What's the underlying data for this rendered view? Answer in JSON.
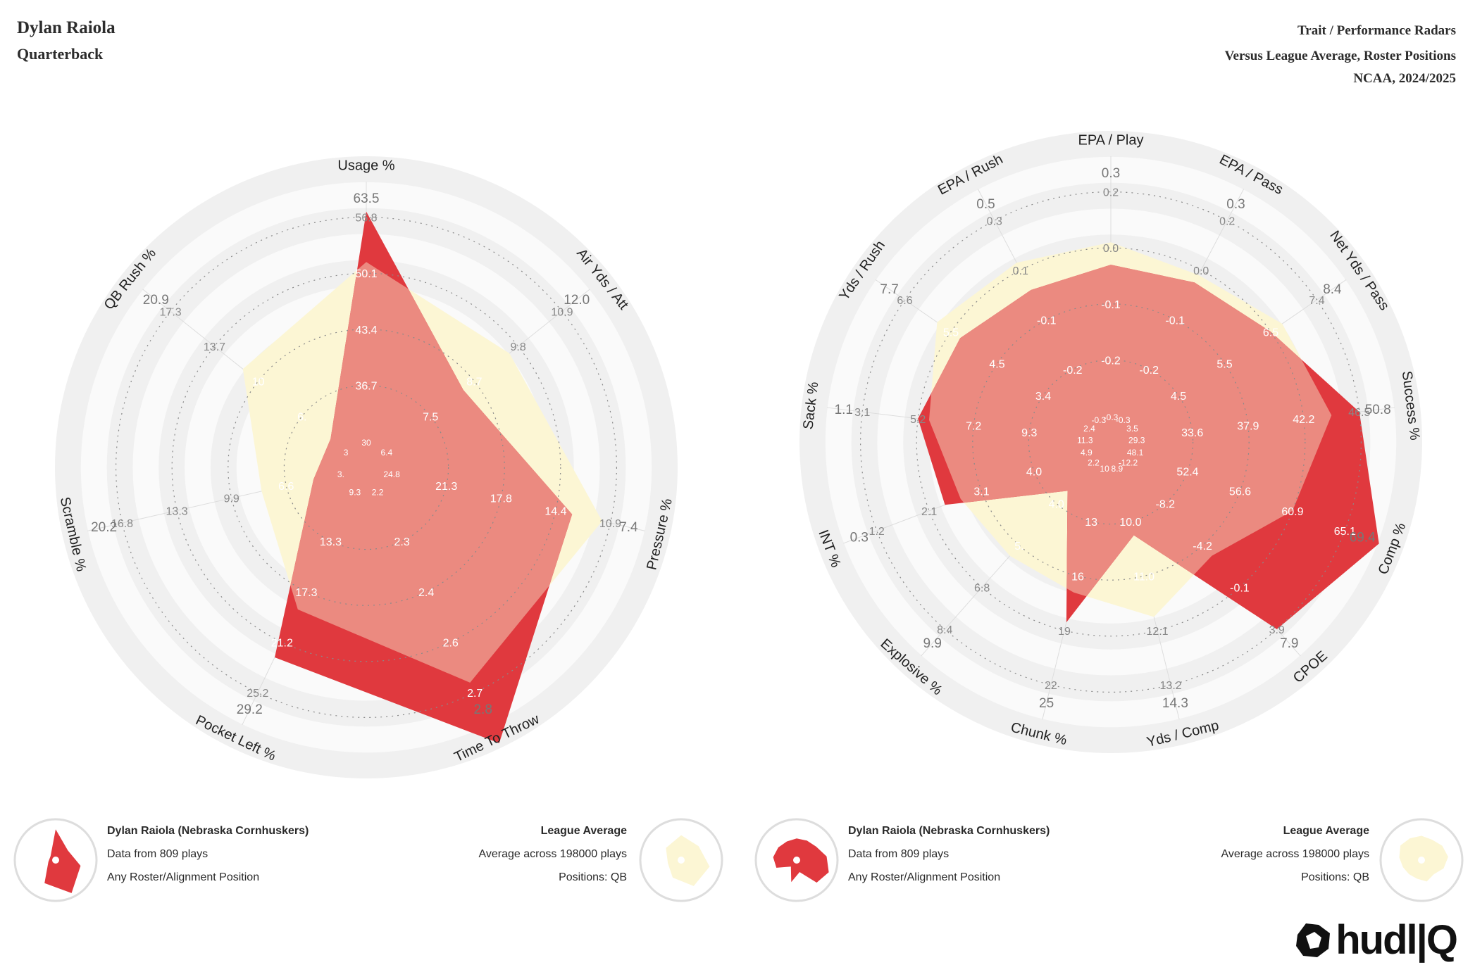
{
  "header": {
    "player_name": "Dylan Raiola",
    "position": "Quarterback",
    "title": "Trait / Performance Radars",
    "subtitle": "Versus League Average, Roster Positions",
    "season": "NCAA, 2024/2025"
  },
  "colors": {
    "player_fill": "#e0393e",
    "league_fill": "#fcf6d4",
    "overlap_fill": "#eb8a80",
    "ring_dark": "#f0f0f0",
    "ring_light": "#fafafa"
  },
  "chart_data": [
    {
      "type": "radar",
      "title": "Trait Radar",
      "axes": [
        {
          "label": "Usage %",
          "ticks": [
            "30",
            "36.7",
            "43.4",
            "50.1",
            "56.8",
            "63.5"
          ],
          "player": 0.82,
          "league": 0.64
        },
        {
          "label": "Air Yds / Att",
          "ticks": [
            "6.4",
            "7.5",
            "8.7",
            "9.8",
            "10.9",
            "12.0"
          ],
          "player": 0.35,
          "league": 0.56
        },
        {
          "label": "Pressure %",
          "ticks": [
            "24.8",
            "21.3",
            "17.8",
            "14.4",
            "10.9",
            "7.4"
          ],
          "player": 0.66,
          "league": 0.77
        },
        {
          "label": "Time To Throw",
          "ticks": [
            "2.2",
            "2.3",
            "2.4",
            "2.6",
            "2.7",
            "2.8"
          ],
          "player": 1.0,
          "league": 0.76
        },
        {
          "label": "Pocket Left %",
          "ticks": [
            "9.3",
            "13.3",
            "17.3",
            "21.2",
            "25.2",
            "29.2"
          ],
          "player": 0.66,
          "league": 0.47
        },
        {
          "label": "Scramble %",
          "ticks": [
            "3.",
            "6.6",
            "9.9",
            "13.3",
            "16.8",
            "20.2"
          ],
          "player": 0.1,
          "league": 0.29
        },
        {
          "label": "QB Rush %",
          "ticks": [
            "3",
            "6.",
            "10",
            "13.7",
            "17.3",
            "20.9"
          ],
          "player": 0.07,
          "league": 0.47
        }
      ]
    },
    {
      "type": "radar",
      "title": "Performance Radar",
      "axes": [
        {
          "label": "EPA / Play",
          "ticks": [
            "-0.3",
            "-0.2",
            "-0.1",
            "0.0",
            "0.2",
            "0.3"
          ],
          "player": 0.54,
          "league": 0.62
        },
        {
          "label": "EPA / Pass",
          "ticks": [
            "-0.3",
            "-0.2",
            "-0.1",
            "0.0",
            "0.2",
            "0.3"
          ],
          "player": 0.55,
          "league": 0.58
        },
        {
          "label": "Net Yds / Pass",
          "ticks": [
            "3.5",
            "4.5",
            "5.5",
            "6.5",
            "7.4",
            "8.4"
          ],
          "player": 0.6,
          "league": 0.65
        },
        {
          "label": "Success %",
          "ticks": [
            "29.3",
            "33.6",
            "37.9",
            "42.2",
            "46.5",
            "50.8"
          ],
          "player": 0.8,
          "league": 0.7
        },
        {
          "label": "Comp %",
          "ticks": [
            "48.1",
            "52.4",
            "56.6",
            "60.9",
            "65.1",
            "69.4"
          ],
          "player": 0.93,
          "league": 0.6
        },
        {
          "label": "CPOE",
          "ticks": [
            "-12.2",
            "-8.2",
            "-4.2",
            "-0.1",
            "3.9",
            "7.9"
          ],
          "player": 0.8,
          "league": 0.45
        },
        {
          "label": "Yds / Comp",
          "ticks": [
            "8.9",
            "10.0",
            "11.0",
            "12.1",
            "13.2",
            "14.3"
          ],
          "player": 0.25,
          "league": 0.55
        },
        {
          "label": "Chunk %",
          "ticks": [
            "10",
            "13",
            "16",
            "19",
            "22",
            "25"
          ],
          "player": 0.57,
          "league": 0.46
        },
        {
          "label": "Explosive %",
          "ticks": [
            "2.2",
            "4.0",
            "5.",
            "6.8",
            "8.4",
            "9.9"
          ],
          "player": 0.14,
          "league": 0.45
        },
        {
          "label": "INT %",
          "ticks": [
            "4.9",
            "4.0",
            "3.1",
            "2.1",
            "1.2",
            "0.3"
          ],
          "player": 0.54,
          "league": 0.48
        },
        {
          "label": "Sack %",
          "ticks": [
            "11.3",
            "9.3",
            "7.2",
            "5.2",
            "3.1",
            "1.1"
          ],
          "player": 0.6,
          "league": 0.56
        },
        {
          "label": "Yds / Rush",
          "ticks": [
            "2.4",
            "3.4",
            "4.5",
            "5.5",
            "6.6",
            "7.7"
          ],
          "player": 0.56,
          "league": 0.66
        },
        {
          "label": "EPA / Rush",
          "ticks": [
            "-0.3",
            "-0.2",
            "-0.1",
            "0.1",
            "0.3",
            "0.5"
          ],
          "player": 0.52,
          "league": 0.63
        }
      ]
    }
  ],
  "legends": [
    {
      "player_title": "Dylan Raiola (Nebraska Cornhuskers)",
      "player_plays": "Data from 809 plays",
      "player_position": "Any Roster/Alignment Position",
      "league_title": "League Average",
      "league_plays": "Average across 198000 plays",
      "league_positions": "Positions: QB"
    },
    {
      "player_title": "Dylan Raiola (Nebraska Cornhuskers)",
      "player_plays": "Data from 809 plays",
      "player_position": "Any Roster/Alignment Position",
      "league_title": "League Average",
      "league_plays": "Average across 198000 plays",
      "league_positions": "Positions: QB"
    }
  ],
  "logo": {
    "text": "hudl|Q"
  }
}
